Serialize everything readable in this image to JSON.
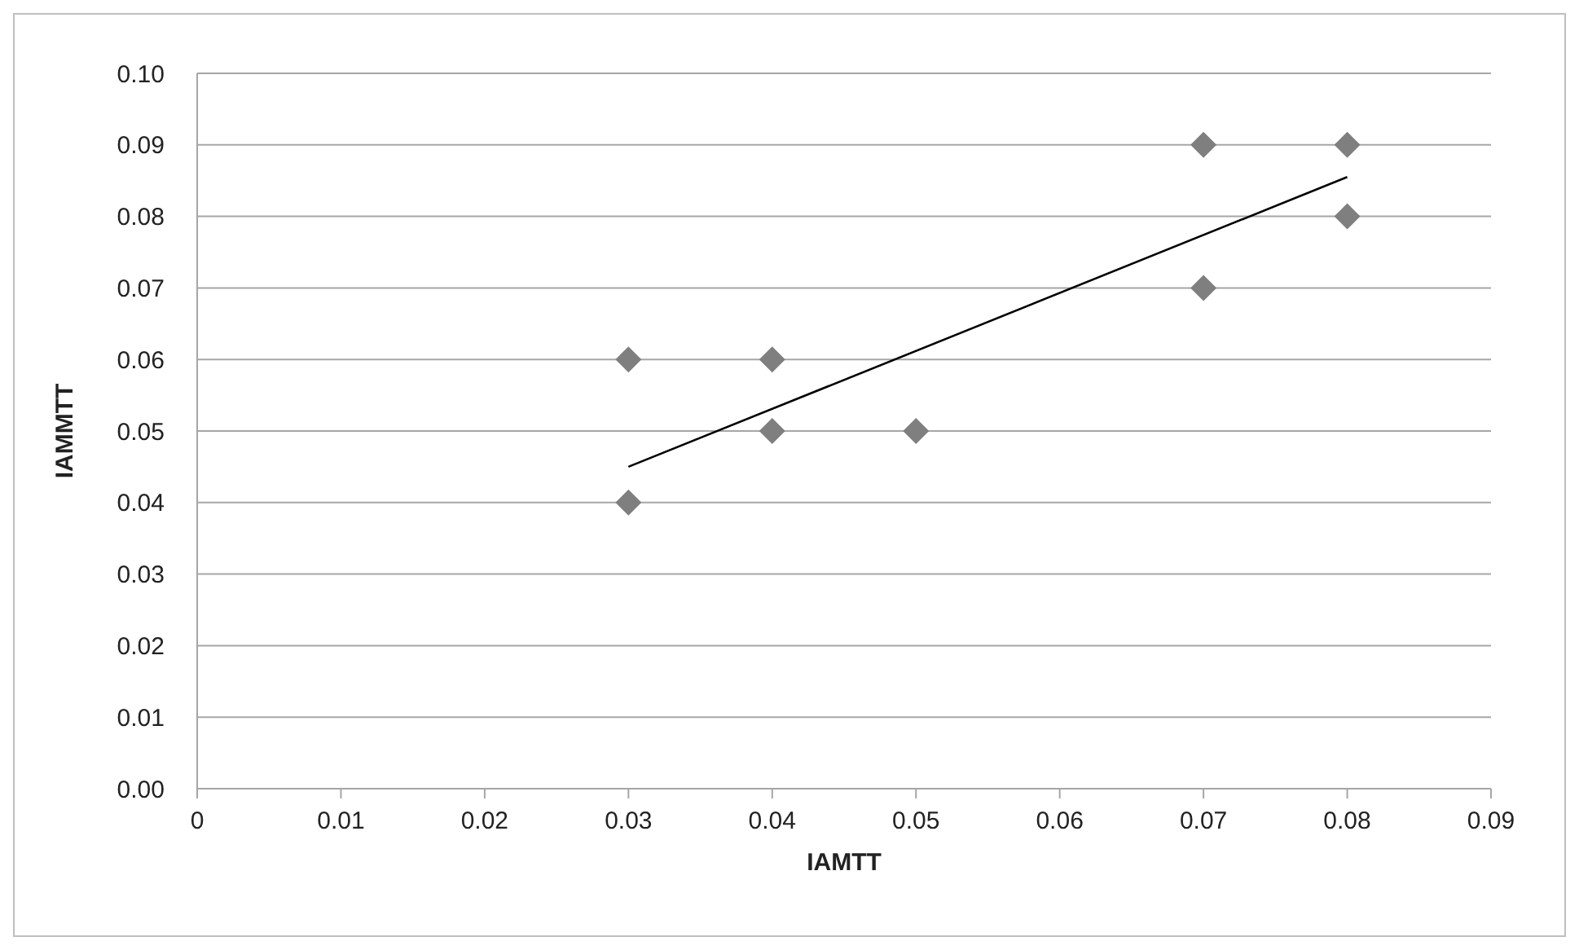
{
  "chart_data": {
    "type": "scatter",
    "xlabel": "IAMTT",
    "ylabel": "IAMMTT",
    "xlim": [
      0,
      0.09
    ],
    "xticks": [
      0,
      0.01,
      0.02,
      0.03,
      0.04,
      0.05,
      0.06,
      0.07,
      0.08,
      0.09
    ],
    "ylim": [
      0,
      0.1
    ],
    "yticks": [
      {
        "value": 0,
        "label": "0.00"
      },
      {
        "value": 0.01,
        "label": "0.01"
      },
      {
        "value": 0.02,
        "label": "0.02"
      },
      {
        "value": 0.03,
        "label": "0.03"
      },
      {
        "value": 0.04,
        "label": "0.04"
      },
      {
        "value": 0.05,
        "label": "0.05"
      },
      {
        "value": 0.06,
        "label": "0.06"
      },
      {
        "value": 0.07,
        "label": "0.07"
      },
      {
        "value": 0.08,
        "label": "0.08"
      },
      {
        "value": 0.09,
        "label": "0.09"
      },
      {
        "value": 0.1,
        "label": "0.10"
      }
    ],
    "grid": "y",
    "marker": "diamond",
    "series": [
      {
        "color": "#7f7f7f",
        "x": [
          0.03,
          0.03,
          0.04,
          0.04,
          0.05,
          0.07,
          0.07,
          0.08,
          0.08
        ],
        "values": [
          0.06,
          0.04,
          0.06,
          0.05,
          0.05,
          0.09,
          0.07,
          0.09,
          0.08
        ]
      },
      {
        "type": "line",
        "color": "#000000",
        "marker": "none",
        "line_style": "solid",
        "x": [
          0.03,
          0.08
        ],
        "values": [
          0.045,
          0.0855
        ]
      }
    ]
  }
}
